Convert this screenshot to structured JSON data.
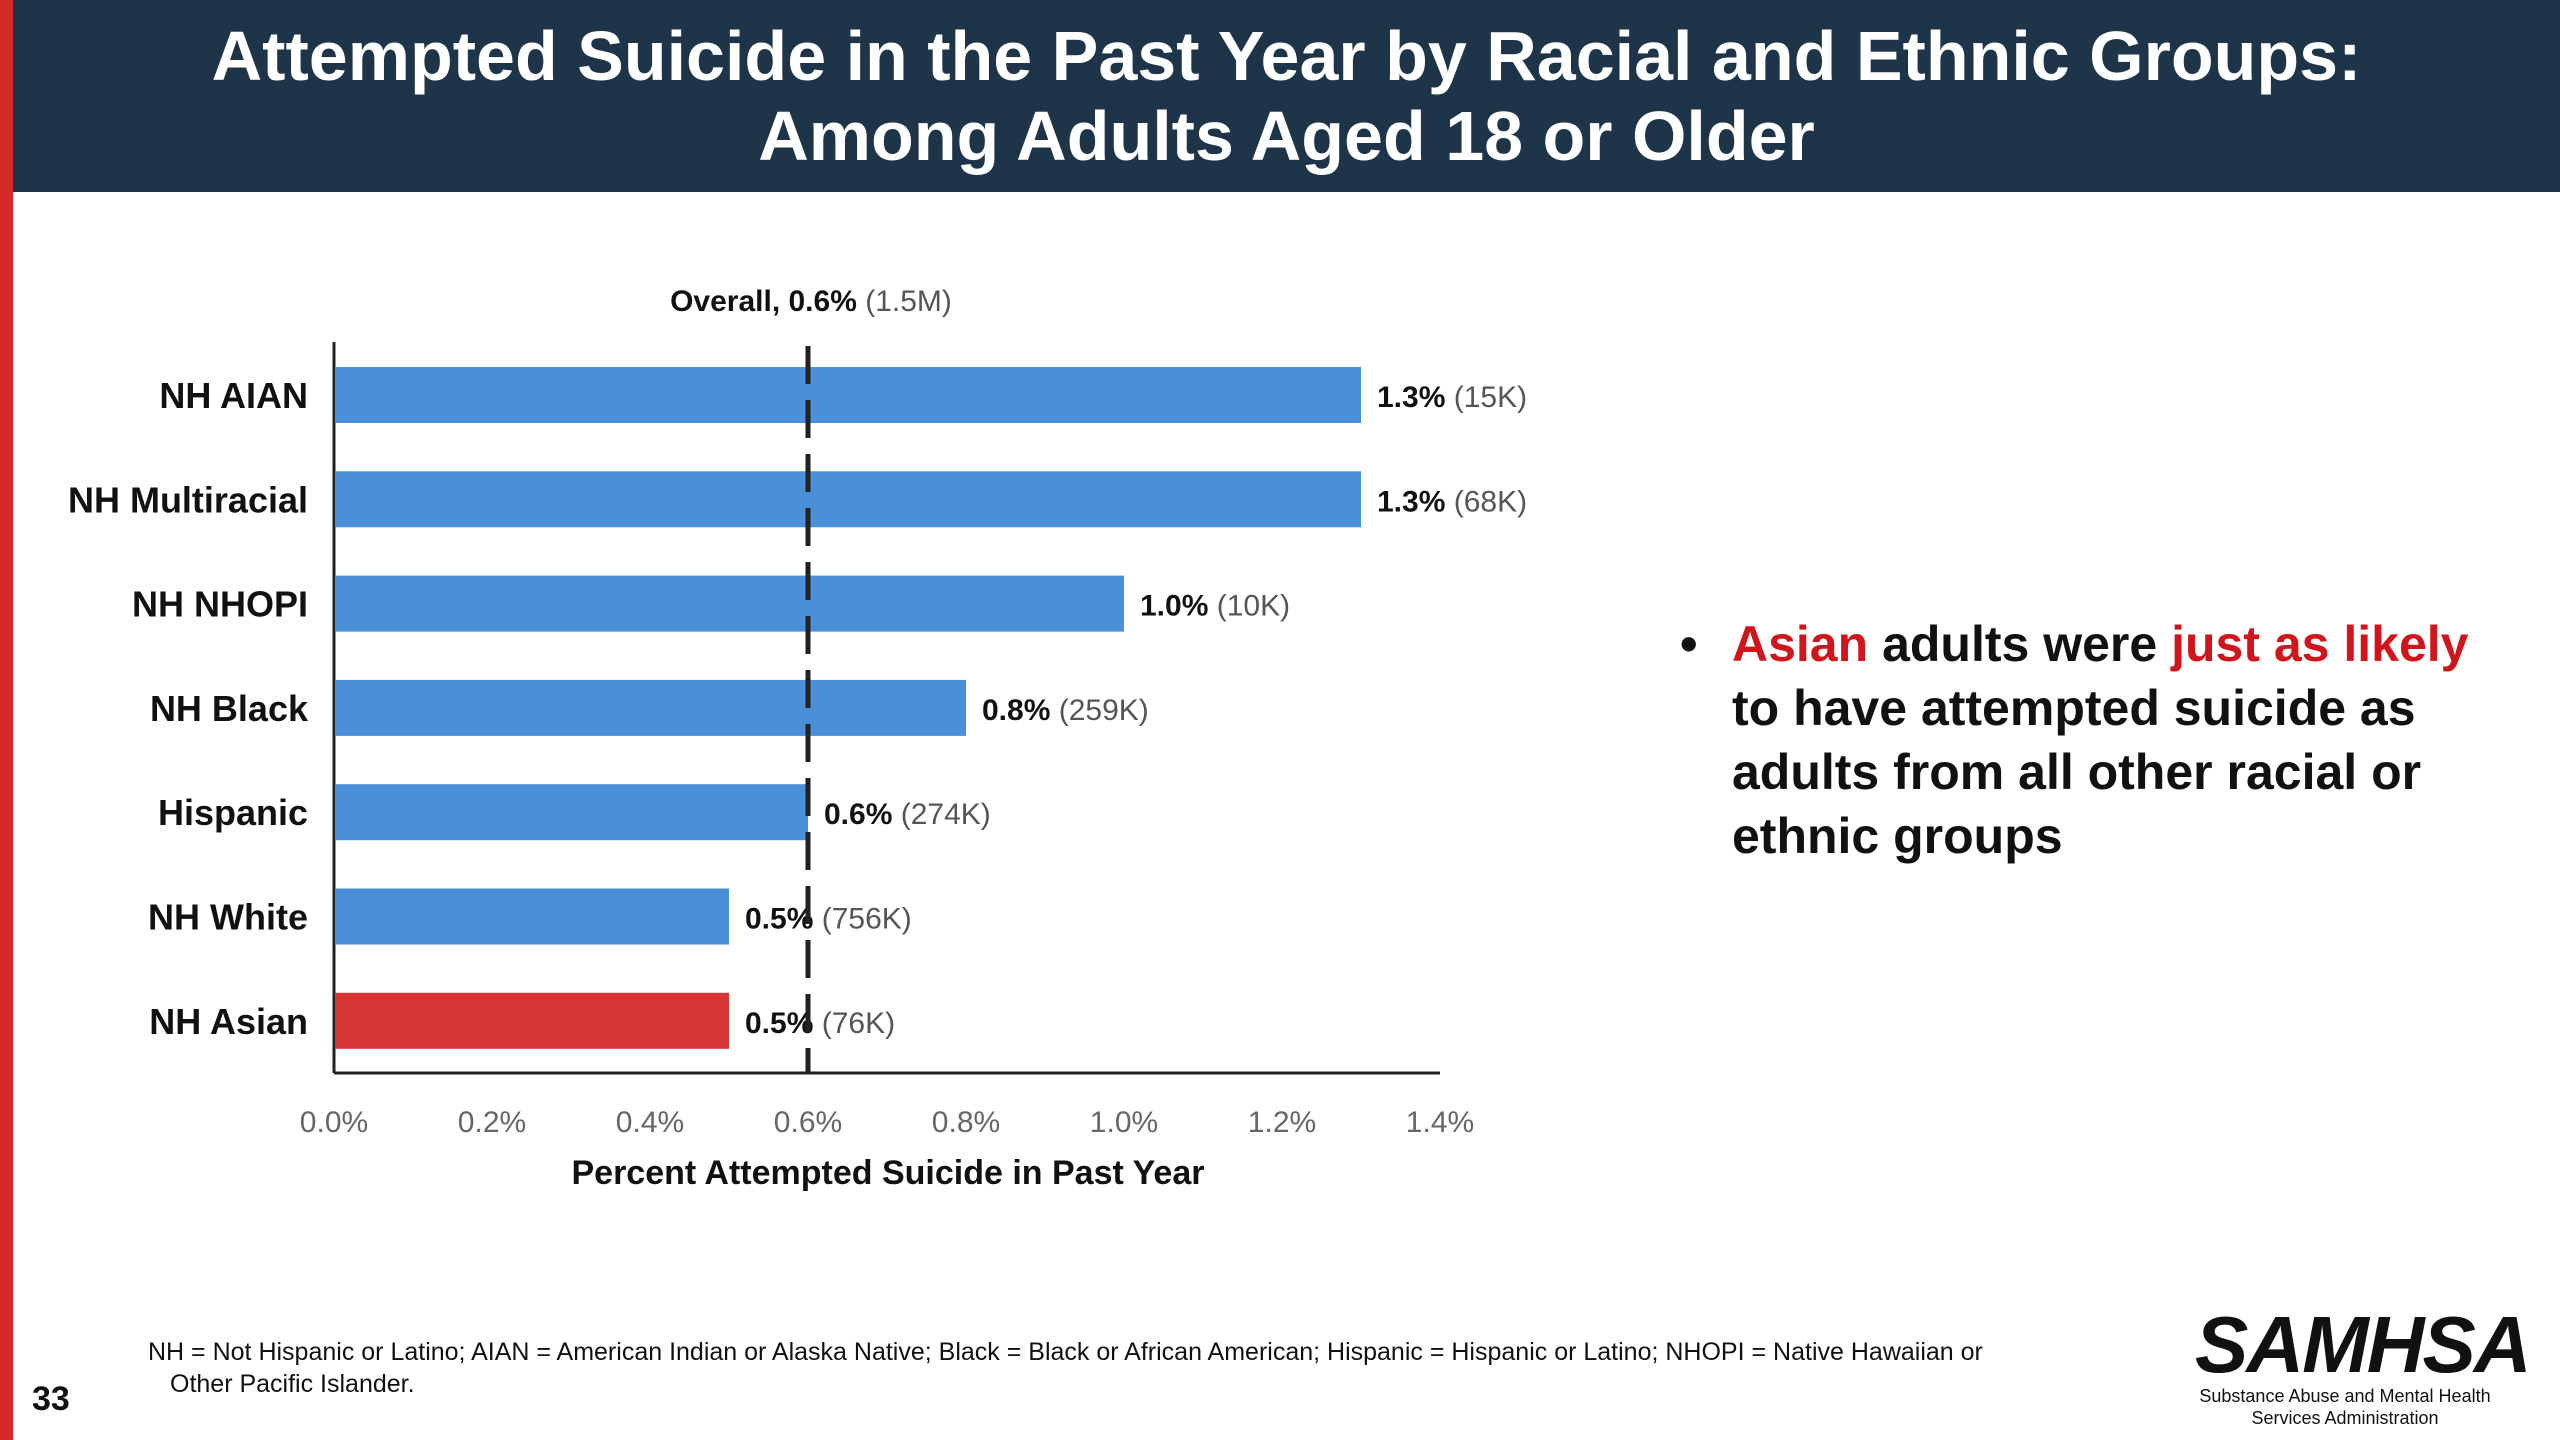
{
  "header": {
    "title_line1": "Attempted Suicide in the Past Year by Racial and Ethnic Groups:",
    "title_line2": "Among Adults Aged 18 or Older"
  },
  "colors": {
    "header_bg": "#1e3448",
    "bar_default": "#4a90d9",
    "bar_highlight": "#d43535",
    "accent_red": "#d0161c"
  },
  "chart_data": {
    "type": "bar",
    "orientation": "horizontal",
    "categories": [
      "NH AIAN",
      "NH Multiracial",
      "NH NHOPI",
      "NH Black",
      "Hispanic",
      "NH White",
      "NH Asian"
    ],
    "values": [
      1.3,
      1.3,
      1.0,
      0.8,
      0.6,
      0.5,
      0.5
    ],
    "value_labels": [
      "1.3%",
      "1.3%",
      "1.0%",
      "0.8%",
      "0.6%",
      "0.5%",
      "0.5%"
    ],
    "count_labels": [
      "(15K)",
      "(68K)",
      "(10K)",
      "(259K)",
      "(274K)",
      "(756K)",
      "(76K)"
    ],
    "highlight_index": 6,
    "xlabel": "Percent Attempted Suicide in Past Year",
    "xlim": [
      0,
      1.4
    ],
    "xticks": [
      0,
      0.2,
      0.4,
      0.6,
      0.8,
      1.0,
      1.2,
      1.4
    ],
    "xtick_labels": [
      "0.0%",
      "0.2%",
      "0.4%",
      "0.6%",
      "0.8%",
      "1.0%",
      "1.2%",
      "1.4%"
    ],
    "reference_line": {
      "value": 0.6,
      "label": "Overall, 0.6%",
      "count": "(1.5M)"
    },
    "grid": false
  },
  "bullet": {
    "dot": "•",
    "highlight1": "Asian",
    "text1": " adults were ",
    "highlight2": "just as likely",
    "text2": " to have attempted suicide as adults from all other racial or ethnic groups"
  },
  "footnote": {
    "line1": "NH = Not Hispanic or Latino; AIAN = American Indian or Alaska Native; Black = Black or African American; Hispanic = Hispanic or Latino; NHOPI = Native Hawaiian or",
    "line2": "Other Pacific Islander."
  },
  "page_number": "33",
  "logo": {
    "name": "SAMHSA",
    "sub_line1": "Substance Abuse and Mental Health",
    "sub_line2": "Services Administration"
  }
}
